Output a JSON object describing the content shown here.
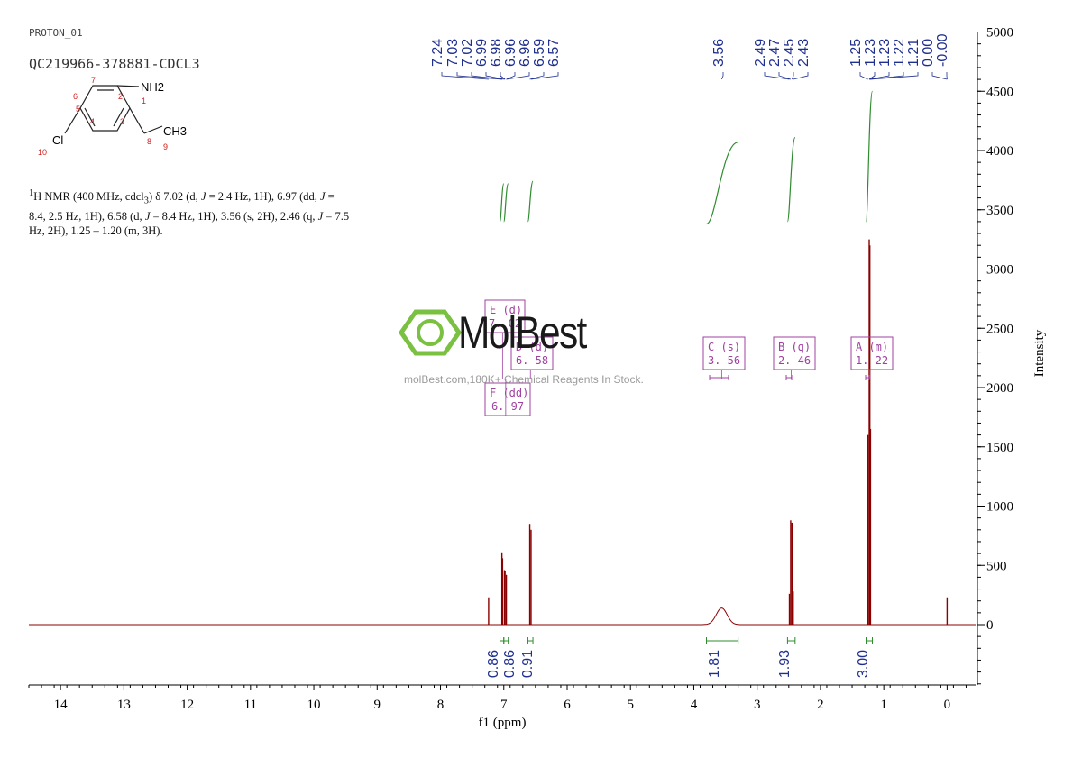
{
  "header": {
    "experiment": "PROTON_01",
    "sample_id": "QC219966-378881-CDCL3"
  },
  "structure": {
    "atom_labels": [
      "NH2",
      "CH3",
      "Cl"
    ],
    "atom_numbers": [
      "1",
      "2",
      "3",
      "4",
      "5",
      "6",
      "7",
      "8",
      "9",
      "10"
    ]
  },
  "description": {
    "line1": "H NMR (400 MHz, cdcl",
    "full_html": "<sup>1</sup>H NMR (400 MHz, cdcl<sub>3</sub>) δ 7.02 (d, <i>J</i> = 2.4 Hz, 1H), 6.97 (dd, <i>J</i> = 8.4, 2.5 Hz, 1H), 6.58 (d, <i>J</i> = 8.4 Hz, 1H), 3.56 (s, 2H), 2.46 (q, <i>J</i> = 7.5 Hz, 2H), 1.25 – 1.20 (m, 3H)."
  },
  "watermark": {
    "brand": "MolBest",
    "tagline": "molBest.com,180K+ Chemical Reagents In Stock."
  },
  "colors": {
    "spectrum": "#8b0000",
    "integral": "#2e8b2e",
    "peak_label": "#1f2f8f",
    "multiplet_box": "#a040a0",
    "brand_green": "#7ac142"
  },
  "chart_data": {
    "type": "line",
    "xlabel": "f1 (ppm)",
    "ylabel": "Intensity",
    "x_reversed": true,
    "xlim": [
      14.5,
      -0.45
    ],
    "x_ticks": [
      "14",
      "13",
      "12",
      "11",
      "10",
      "9",
      "8",
      "7",
      "6",
      "5",
      "4",
      "3",
      "2",
      "1",
      "0"
    ],
    "y_ticks": [
      "0",
      "500",
      "1000",
      "1500",
      "2000",
      "2500",
      "3000",
      "3500",
      "4000",
      "4500",
      "5000"
    ],
    "ylim": [
      -500,
      5050
    ],
    "peak_labels": [
      "7.24",
      "7.03",
      "7.02",
      "6.99",
      "6.98",
      "6.96",
      "6.96",
      "6.59",
      "6.57",
      "3.56",
      "2.49",
      "2.47",
      "2.45",
      "2.43",
      "1.25",
      "1.23",
      "1.23",
      "1.22",
      "1.21",
      "0.00",
      "-0.00"
    ],
    "peaks": [
      {
        "ppm": 7.24,
        "height": 230
      },
      {
        "ppm": 7.03,
        "height": 610
      },
      {
        "ppm": 7.02,
        "height": 560
      },
      {
        "ppm": 6.99,
        "height": 460
      },
      {
        "ppm": 6.98,
        "height": 450
      },
      {
        "ppm": 6.96,
        "height": 420
      },
      {
        "ppm": 6.59,
        "height": 850
      },
      {
        "ppm": 6.57,
        "height": 800
      },
      {
        "ppm": 2.49,
        "height": 260
      },
      {
        "ppm": 2.47,
        "height": 880
      },
      {
        "ppm": 2.45,
        "height": 860
      },
      {
        "ppm": 2.43,
        "height": 280
      },
      {
        "ppm": 1.25,
        "height": 1600
      },
      {
        "ppm": 1.23,
        "height": 3250
      },
      {
        "ppm": 1.22,
        "height": 3200
      },
      {
        "ppm": 1.21,
        "height": 1650
      },
      {
        "ppm": 0.0,
        "height": 230
      }
    ],
    "broad_peaks": [
      {
        "ppm": 3.56,
        "height": 140,
        "width": 0.12
      }
    ],
    "integrals": [
      {
        "from": 7.06,
        "to": 7.0,
        "value": "0.86",
        "y0": 3400,
        "y1": 3720
      },
      {
        "from": 7.0,
        "to": 6.93,
        "value": "0.86",
        "y0": 3400,
        "y1": 3720
      },
      {
        "from": 6.62,
        "to": 6.54,
        "value": "0.91",
        "y0": 3400,
        "y1": 3740
      },
      {
        "from": 3.8,
        "to": 3.3,
        "value": "1.81",
        "y0": 3380,
        "y1": 4070
      },
      {
        "from": 2.52,
        "to": 2.4,
        "value": "1.93",
        "y0": 3400,
        "y1": 4110
      },
      {
        "from": 1.28,
        "to": 1.18,
        "value": "3.00",
        "y0": 3400,
        "y1": 4500
      }
    ],
    "multiplets": [
      {
        "letter": "E",
        "type": "(d)",
        "shift": "7.02",
        "ppm": 7.02
      },
      {
        "letter": "D",
        "type": "(d)",
        "shift": "6.58",
        "ppm": 6.58
      },
      {
        "letter": "F",
        "type": "(dd)",
        "shift": "6.97",
        "ppm": 6.97
      },
      {
        "letter": "C",
        "type": "(s)",
        "shift": "3.56",
        "ppm": 3.56
      },
      {
        "letter": "B",
        "type": "(q)",
        "shift": "2.46",
        "ppm": 2.46
      },
      {
        "letter": "A",
        "type": "(m)",
        "shift": "1.22",
        "ppm": 1.22
      }
    ]
  }
}
